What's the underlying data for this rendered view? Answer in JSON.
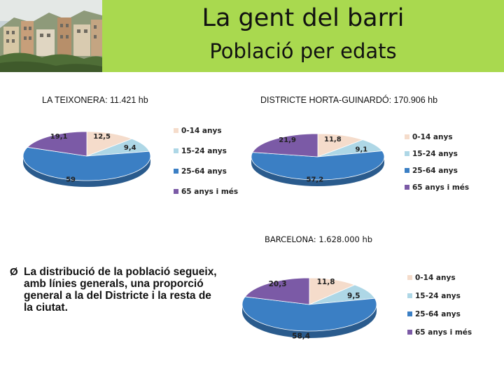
{
  "header": {
    "title": "La gent del barri",
    "subtitle": "Població per edats"
  },
  "colors": {
    "header_bg": "#a9d94f",
    "c0_14": "#f5dccb",
    "c15_24": "#aed7e6",
    "c25_64": "#3b7fc4",
    "c65": "#7b5aa6"
  },
  "chart_data": [
    {
      "type": "pie",
      "title": "LA TEIXONERA: 11.421 hb",
      "categories": [
        "0-14 anys",
        "15-24 anys",
        "25-64 anys",
        "65 anys i més"
      ],
      "values": [
        12.5,
        9.4,
        59,
        19.1
      ],
      "labels": [
        "12,5",
        "9,4",
        "59",
        "19,1"
      ],
      "legend": "right"
    },
    {
      "type": "pie",
      "title": "DISTRICTE HORTA-GUINARDÓ: 170.906 hb",
      "categories": [
        "0-14 anys",
        "15-24 anys",
        "25-64 anys",
        "65 anys i més"
      ],
      "values": [
        11.8,
        9.1,
        57.2,
        21.9
      ],
      "labels": [
        "11,8",
        "9,1",
        "57,2",
        "21,9"
      ],
      "legend": "right"
    },
    {
      "type": "pie",
      "title": "BARCELONA: 1.628.000 hb",
      "categories": [
        "0-14 anys",
        "15-24 anys",
        "25-64 anys",
        "65 anys i més"
      ],
      "values": [
        11.8,
        9.5,
        58.4,
        20.3
      ],
      "labels": [
        "11,8",
        "9,5",
        "58,4",
        "20,3"
      ],
      "legend": "right"
    }
  ],
  "bullet": {
    "marker": "Ø",
    "text": "La distribució de la població segueix, amb línies generals, una proporció general a la  del Districte i la resta de la ciutat."
  }
}
